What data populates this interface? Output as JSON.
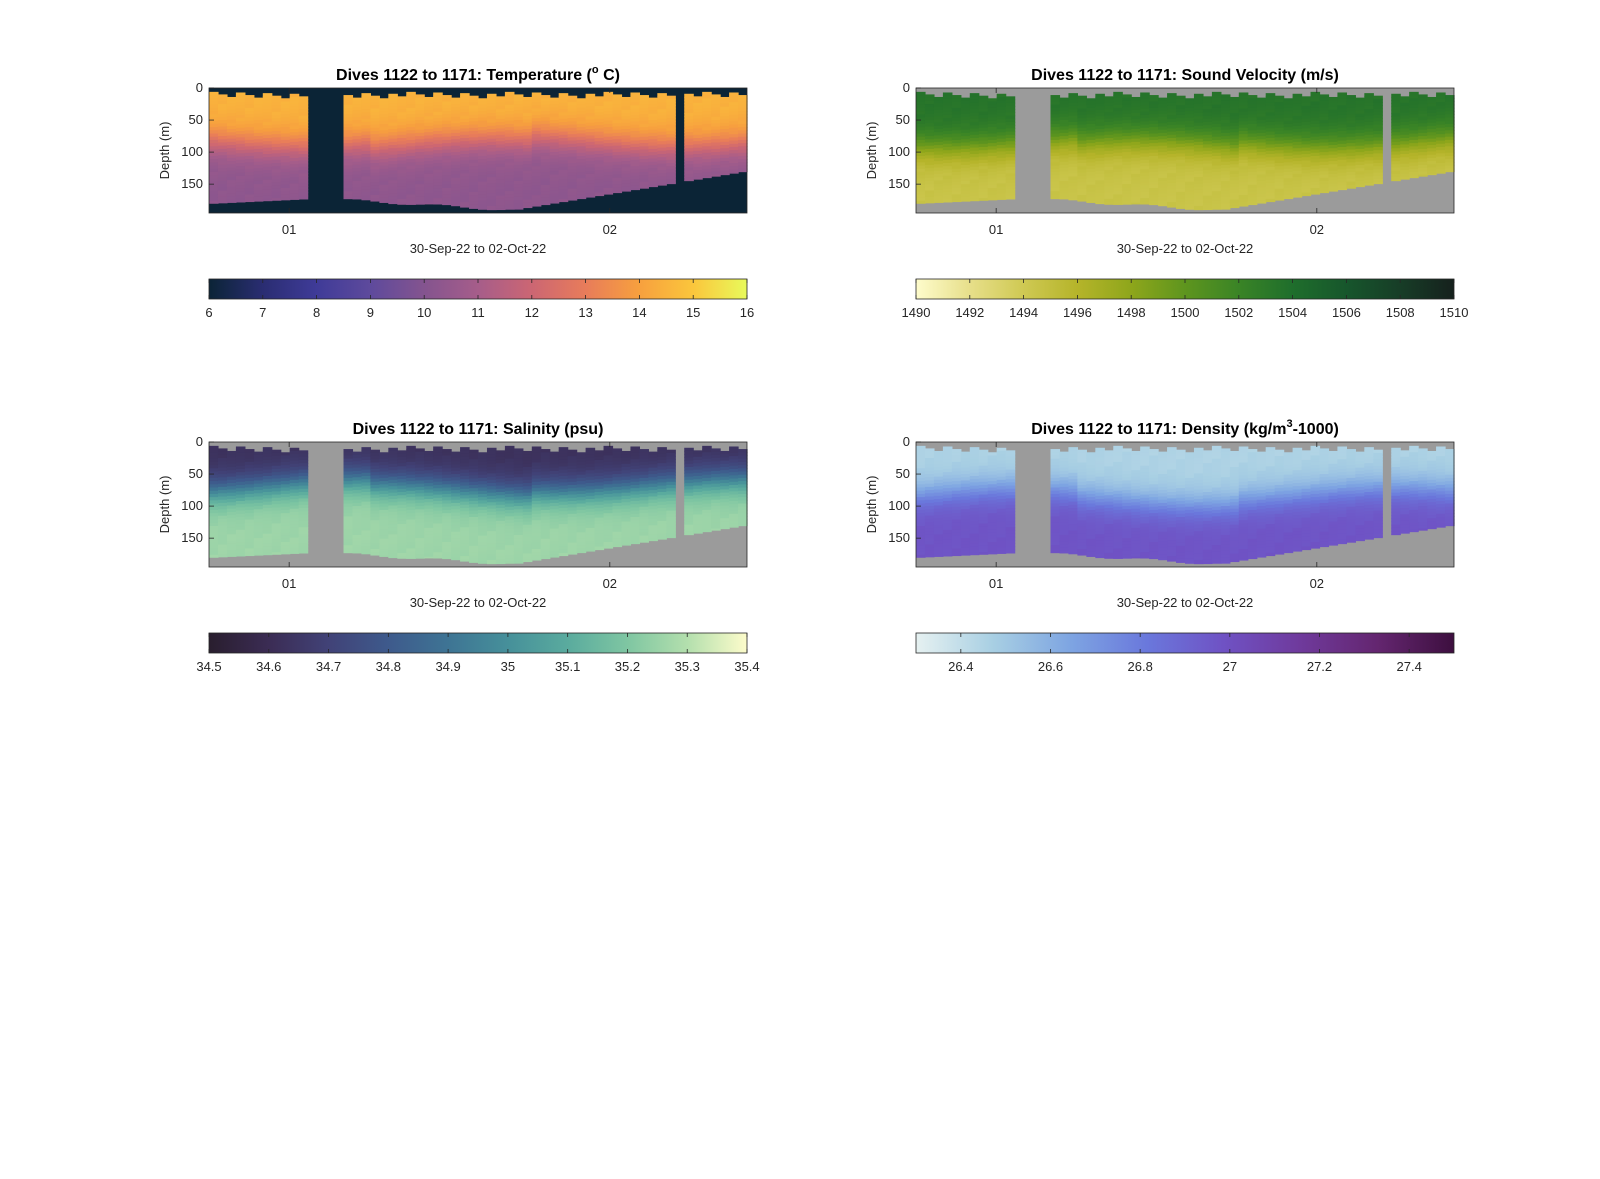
{
  "chart_data": [
    {
      "type": "heatmap",
      "variable": "temperature",
      "title": "Dives 1122 to 1171: Temperature (",
      "title_suffix": " C)",
      "title_super": "o",
      "xlabel": "30-Sep-22 to 02-Oct-22",
      "ylabel": "Depth (m)",
      "x_ticks": [
        "01",
        "02"
      ],
      "y_ticks": [
        0,
        50,
        100,
        150
      ],
      "ylim": [
        0,
        195
      ],
      "no_data_color": "#0b2436",
      "colorbar": {
        "ticks": [
          6,
          7,
          8,
          9,
          10,
          11,
          12,
          13,
          14,
          15,
          16
        ],
        "range": [
          6,
          16
        ],
        "colors": [
          "#0b2436",
          "#2a2d72",
          "#3f3b98",
          "#5e4a9c",
          "#84548f",
          "#a65d8a",
          "#cc6673",
          "#e87c5a",
          "#f7a03e",
          "#fbc63c",
          "#e8fa5b"
        ]
      },
      "profile": {
        "surface": 14.5,
        "deep": 10.3,
        "thermocline_depth": 80
      }
    },
    {
      "type": "heatmap",
      "variable": "sound_velocity",
      "title": "Dives 1122 to 1171: Sound Velocity (m/s)",
      "xlabel": "30-Sep-22 to 02-Oct-22",
      "ylabel": "Depth (m)",
      "x_ticks": [
        "01",
        "02"
      ],
      "y_ticks": [
        0,
        50,
        100,
        150
      ],
      "ylim": [
        0,
        195
      ],
      "no_data_color": "#9b9b9b",
      "colorbar": {
        "ticks": [
          1490,
          1492,
          1494,
          1496,
          1498,
          1500,
          1502,
          1504,
          1506,
          1508,
          1510
        ],
        "range": [
          1490,
          1510
        ],
        "colors": [
          "#fefccc",
          "#e7df8a",
          "#cfc953",
          "#b5b42a",
          "#8ea61b",
          "#5e951e",
          "#3a8426",
          "#1f6e2c",
          "#17562c",
          "#173d27",
          "#16211d"
        ]
      },
      "profile": {
        "surface": 1503.5,
        "deep": 1494.5,
        "thermocline_depth": 80
      }
    },
    {
      "type": "heatmap",
      "variable": "salinity",
      "title": "Dives 1122 to 1171: Salinity (psu)",
      "xlabel": "30-Sep-22 to 02-Oct-22",
      "ylabel": "Depth (m)",
      "x_ticks": [
        "01",
        "02"
      ],
      "y_ticks": [
        0,
        50,
        100,
        150
      ],
      "ylim": [
        0,
        195
      ],
      "no_data_color": "#9b9b9b",
      "colorbar": {
        "ticks": [
          34.5,
          34.6,
          34.7,
          34.8,
          34.9,
          35,
          35.1,
          35.2,
          35.3,
          35.4
        ],
        "range": [
          34.5,
          35.4
        ],
        "colors": [
          "#291e2e",
          "#3b2c54",
          "#414277",
          "#3e5a8c",
          "#3e7494",
          "#46909a",
          "#5aab9e",
          "#7fc6a2",
          "#b3dfad",
          "#fdfccb"
        ]
      },
      "profile": {
        "surface": 34.62,
        "deep": 35.26,
        "thermocline_depth": 65
      }
    },
    {
      "type": "heatmap",
      "variable": "density",
      "title": "Dives 1122 to 1171: Density (kg/m",
      "title_suffix": "-1000)",
      "title_super": "3",
      "xlabel": "30-Sep-22 to 02-Oct-22",
      "ylabel": "Depth (m)",
      "x_ticks": [
        "01",
        "02"
      ],
      "y_ticks": [
        0,
        50,
        100,
        150
      ],
      "ylim": [
        0,
        195
      ],
      "no_data_color": "#9b9b9b",
      "colorbar": {
        "ticks": [
          26.4,
          26.6,
          26.8,
          27,
          27.2,
          27.4
        ],
        "range": [
          26.3,
          27.5
        ],
        "colors": [
          "#e6f1f1",
          "#a8cfe3",
          "#7ea5e2",
          "#6a78dc",
          "#6f52c4",
          "#6f3a9c",
          "#642670",
          "#3d0f3f"
        ]
      },
      "profile": {
        "surface": 26.45,
        "deep": 26.98,
        "thermocline_depth": 80
      }
    }
  ]
}
